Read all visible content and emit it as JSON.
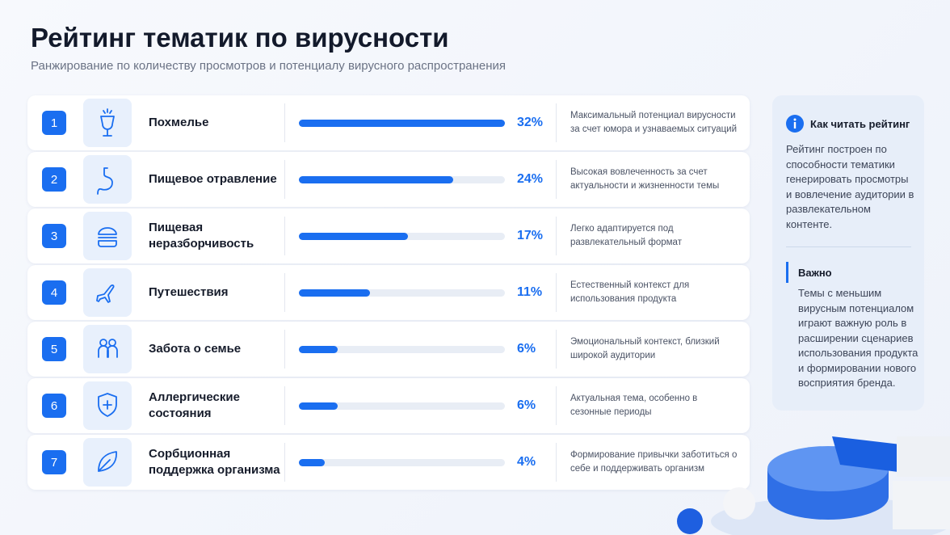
{
  "header": {
    "title": "Рейтинг тематик по вирусности",
    "subtitle": "Ранжирование по количеству просмотров и потенциалу вирусного распространения"
  },
  "rows": [
    {
      "rank": "1",
      "name": "Похмелье",
      "value": 32,
      "value_label": "32%",
      "description": "Максимальный потенциал вирусности за счет юмора и узнаваемых ситуаций"
    },
    {
      "rank": "2",
      "name": "Пищевое отравление",
      "value": 24,
      "value_label": "24%",
      "description": "Высокая вовлеченность за счет актуальности и жизненности темы"
    },
    {
      "rank": "3",
      "name": "Пищевая неразборчивость",
      "value": 17,
      "value_label": "17%",
      "description": "Легко адаптируется под развлекательный формат"
    },
    {
      "rank": "4",
      "name": "Путешествия",
      "value": 11,
      "value_label": "11%",
      "description": "Естественный контекст для использования продукта"
    },
    {
      "rank": "5",
      "name": "Забота о семье",
      "value": 6,
      "value_label": "6%",
      "description": "Эмоциональный контекст, близкий широкой аудитории"
    },
    {
      "rank": "6",
      "name": "Аллергические состояния",
      "value": 6,
      "value_label": "6%",
      "description": "Актуальная тема, особенно в сезонные периоды"
    },
    {
      "rank": "7",
      "name": "Сорбционная поддержка организма",
      "value": 4,
      "value_label": "4%",
      "description": "Формирование привычки заботиться о себе и поддерживать организм"
    }
  ],
  "panel": {
    "title": "Как читать рейтинг",
    "text": "Рейтинг построен по способности тематики генерировать просмотры и вовлечение аудитории в развлекательном контенте.",
    "note_title": "Важно",
    "note_text": "Темы с меньшим вирусным потенциалом играют важную роль в расширении сценариев использования продукта и формировании нового восприятия бренда."
  }
}
